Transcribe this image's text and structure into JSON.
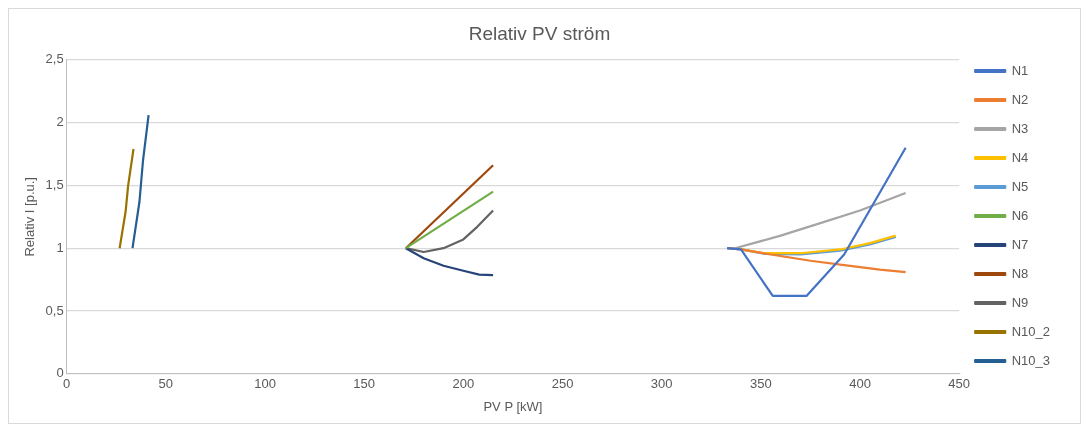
{
  "chart_data": {
    "type": "line",
    "title": "Relativ PV ström",
    "xlabel": "PV P [kW]",
    "ylabel": "Relativ I [p.u.]",
    "xlim": [
      0,
      450
    ],
    "xticks": [
      0,
      50,
      100,
      150,
      200,
      250,
      300,
      350,
      400,
      450
    ],
    "ylim": [
      0,
      2.5
    ],
    "yticks": [
      0,
      {
        "value": 0.5,
        "label": "0,5"
      },
      1,
      {
        "value": 1.5,
        "label": "1,5"
      },
      2,
      {
        "value": 2.5,
        "label": "2,5"
      }
    ],
    "grid": "y",
    "legend": "right",
    "marker": "none",
    "line_style": "solid",
    "series": [
      {
        "name": "N1",
        "color": "#4472c4",
        "x": [
          333,
          340,
          356,
          373,
          392,
          423
        ],
        "values": [
          1.0,
          0.99,
          0.62,
          0.62,
          0.95,
          1.8
        ]
      },
      {
        "name": "N2",
        "color": "#ed7d31",
        "x": [
          333,
          340,
          355,
          375,
          395,
          410,
          423
        ],
        "values": [
          1.0,
          0.99,
          0.95,
          0.9,
          0.86,
          0.83,
          0.81
        ]
      },
      {
        "name": "N3",
        "color": "#a5a5a5",
        "x": [
          337,
          360,
          380,
          400,
          423
        ],
        "values": [
          1.0,
          1.1,
          1.2,
          1.3,
          1.44
        ]
      },
      {
        "name": "N4",
        "color": "#ffc000",
        "x": [
          340,
          352,
          370,
          390,
          405,
          418
        ],
        "values": [
          0.99,
          0.96,
          0.96,
          0.99,
          1.04,
          1.1
        ]
      },
      {
        "name": "N5",
        "color": "#5b9bd5",
        "x": [
          333,
          340,
          352,
          370,
          390,
          405,
          418
        ],
        "values": [
          1.0,
          0.99,
          0.955,
          0.95,
          0.98,
          1.03,
          1.09
        ]
      },
      {
        "name": "N6",
        "color": "#70ad47",
        "x": [
          171,
          215
        ],
        "values": [
          1.0,
          1.45
        ]
      },
      {
        "name": "N7",
        "color": "#264478",
        "x": [
          171,
          180,
          190,
          200,
          208,
          215
        ],
        "values": [
          1.0,
          0.92,
          0.86,
          0.82,
          0.79,
          0.785
        ]
      },
      {
        "name": "N8",
        "color": "#9e480e",
        "x": [
          171,
          215
        ],
        "values": [
          1.0,
          1.66
        ]
      },
      {
        "name": "N9",
        "color": "#636363",
        "x": [
          171,
          180,
          190,
          200,
          207,
          215
        ],
        "values": [
          1.0,
          0.97,
          1.0,
          1.07,
          1.17,
          1.3
        ]
      },
      {
        "name": "N10_2",
        "color": "#997300",
        "x": [
          26.7,
          29.7,
          31,
          33.7
        ],
        "values": [
          1.0,
          1.29,
          1.5,
          1.79
        ]
      },
      {
        "name": "N10_3",
        "color": "#255e91",
        "x": [
          33.2,
          36.7,
          38.5,
          41.3
        ],
        "values": [
          1.0,
          1.37,
          1.7,
          2.06
        ]
      }
    ]
  }
}
